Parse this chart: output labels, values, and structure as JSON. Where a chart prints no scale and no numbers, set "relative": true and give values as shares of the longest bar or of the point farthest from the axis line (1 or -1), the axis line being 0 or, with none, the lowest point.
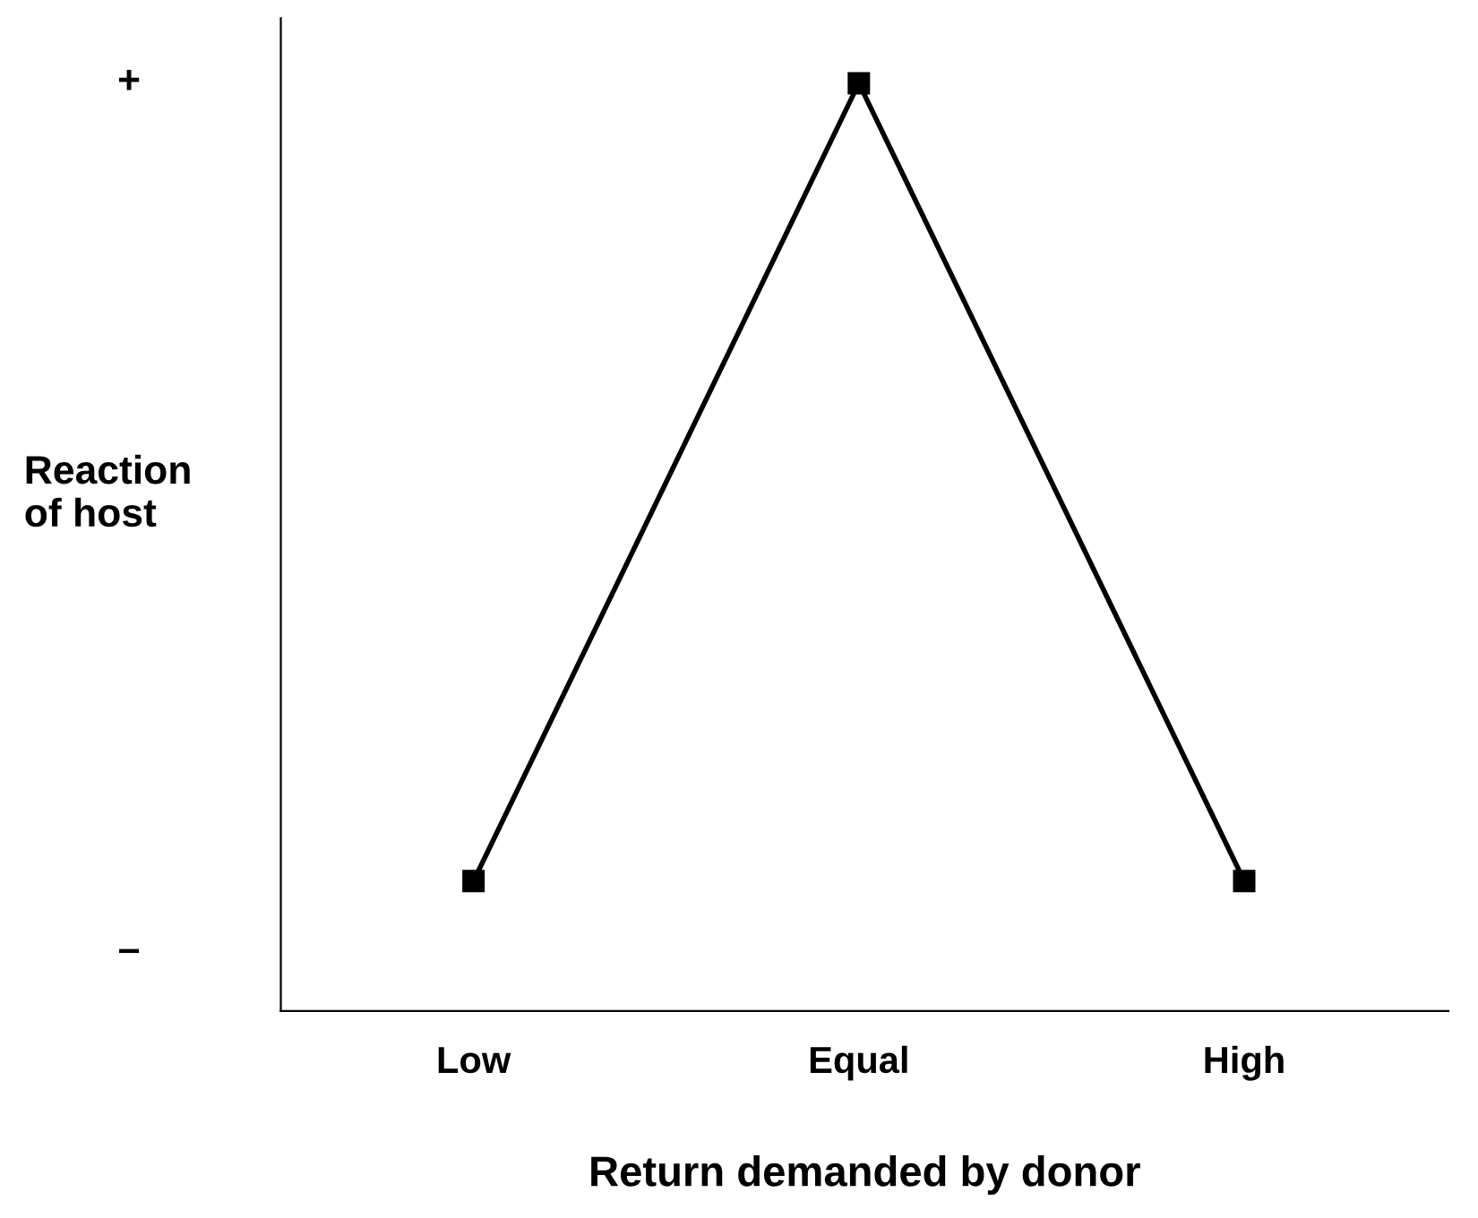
{
  "chart_data": {
    "type": "line",
    "xlabel": "Return demanded by donor",
    "ylabel": "Reaction\nof host",
    "categories": [
      "Low",
      "Equal",
      "High"
    ],
    "series": [
      {
        "color": "#000000",
        "values": [
          0.14,
          1,
          0.14
        ]
      }
    ],
    "relative": true,
    "annotations": [
      "+",
      "–"
    ],
    "grid": false,
    "legend": false,
    "marker": "square",
    "line_style": "solid"
  }
}
